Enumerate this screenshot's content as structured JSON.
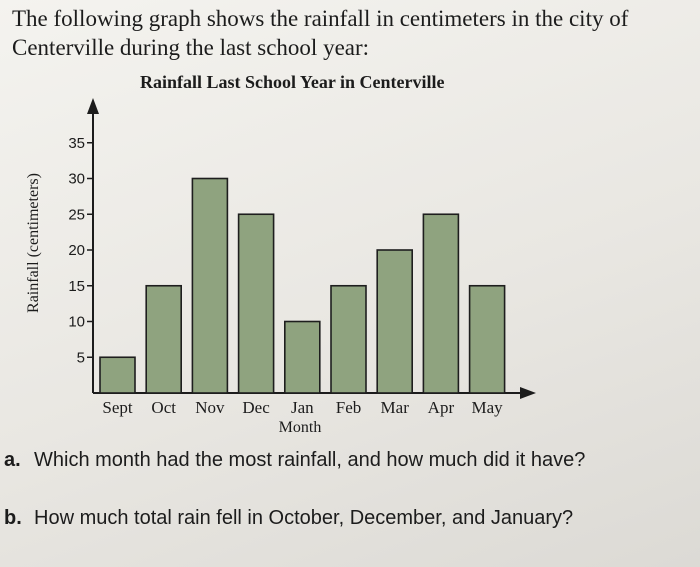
{
  "intro_text": "The following graph shows the rainfall in centimeters in the city of Centerville during the last school year:",
  "chart_data": {
    "type": "bar",
    "title": "Rainfall Last School Year in Centerville",
    "xlabel": "Month",
    "ylabel": "Rainfall (centimeters)",
    "categories": [
      "Sept",
      "Oct",
      "Nov",
      "Dec",
      "Jan",
      "Feb",
      "Mar",
      "Apr",
      "May"
    ],
    "values": [
      5,
      15,
      30,
      25,
      10,
      15,
      20,
      25,
      15
    ],
    "yticks": [
      5,
      10,
      15,
      20,
      25,
      30,
      35
    ],
    "ylim": [
      0,
      38
    ],
    "grid": false,
    "bar_color": "#8fa37f",
    "bar_outline": "#1e1e1e"
  },
  "questions": [
    {
      "letter": "a.",
      "text": "Which month had the most rainfall, and how much did it have?"
    },
    {
      "letter": "b.",
      "text": "How much total rain fell in October, December, and January?"
    }
  ]
}
